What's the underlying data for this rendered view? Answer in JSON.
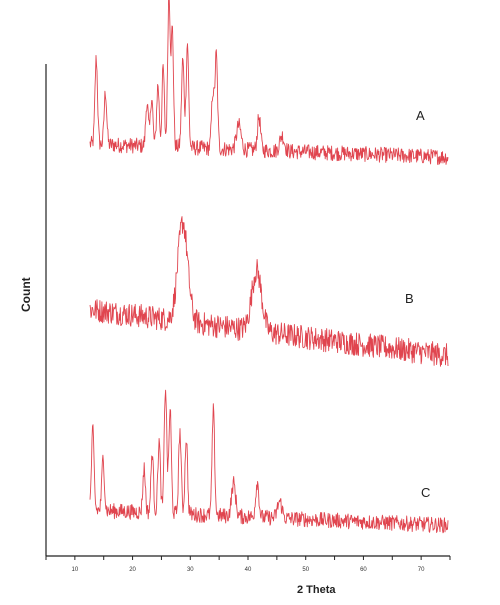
{
  "chart_data": {
    "type": "line",
    "xlabel": "2 Theta",
    "ylabel": "Count",
    "xlim": [
      5,
      75
    ],
    "x_ticks": [
      "10",
      "20",
      "30",
      "40",
      "50",
      "60",
      "70"
    ],
    "grid": false,
    "series_color": "#e0454f",
    "series": [
      {
        "name": "A",
        "baseline": {
          "start": 0.2,
          "end": 0.08
        },
        "peaks": [
          {
            "x": 13.7,
            "h": 0.78,
            "w": 0.22
          },
          {
            "x": 15.3,
            "h": 0.48,
            "w": 0.22
          },
          {
            "x": 22.5,
            "h": 0.4,
            "w": 0.22
          },
          {
            "x": 23.3,
            "h": 0.45,
            "w": 0.22
          },
          {
            "x": 24.4,
            "h": 0.56,
            "w": 0.22
          },
          {
            "x": 25.3,
            "h": 0.72,
            "w": 0.2
          },
          {
            "x": 26.3,
            "h": 1.4,
            "w": 0.22
          },
          {
            "x": 26.9,
            "h": 1.05,
            "w": 0.2
          },
          {
            "x": 28.7,
            "h": 0.8,
            "w": 0.22
          },
          {
            "x": 29.5,
            "h": 0.95,
            "w": 0.22
          },
          {
            "x": 33.9,
            "h": 0.5,
            "w": 0.22
          },
          {
            "x": 34.5,
            "h": 0.85,
            "w": 0.22
          },
          {
            "x": 38.4,
            "h": 0.22,
            "w": 0.4
          },
          {
            "x": 41.9,
            "h": 0.3,
            "w": 0.28
          },
          {
            "x": 45.9,
            "h": 0.14,
            "w": 0.4
          }
        ]
      },
      {
        "name": "B",
        "baseline": {
          "start": 0.46,
          "end": 0.04
        },
        "peaks": [
          {
            "x": 28.7,
            "h": 0.9,
            "w": 0.85
          },
          {
            "x": 41.5,
            "h": 0.55,
            "w": 0.85
          }
        ]
      },
      {
        "name": "C",
        "baseline": {
          "start": 0.2,
          "end": 0.06
        },
        "peaks": [
          {
            "x": 13.1,
            "h": 0.72,
            "w": 0.22
          },
          {
            "x": 14.9,
            "h": 0.48,
            "w": 0.22
          },
          {
            "x": 22.0,
            "h": 0.4,
            "w": 0.22
          },
          {
            "x": 23.4,
            "h": 0.55,
            "w": 0.22
          },
          {
            "x": 24.6,
            "h": 0.65,
            "w": 0.22
          },
          {
            "x": 25.7,
            "h": 1.15,
            "w": 0.22
          },
          {
            "x": 26.5,
            "h": 0.95,
            "w": 0.22
          },
          {
            "x": 28.2,
            "h": 0.75,
            "w": 0.22
          },
          {
            "x": 29.3,
            "h": 0.7,
            "w": 0.22
          },
          {
            "x": 34.0,
            "h": 0.95,
            "w": 0.22
          },
          {
            "x": 37.5,
            "h": 0.3,
            "w": 0.35
          },
          {
            "x": 41.6,
            "h": 0.32,
            "w": 0.28
          },
          {
            "x": 45.5,
            "h": 0.15,
            "w": 0.4
          }
        ]
      }
    ]
  }
}
